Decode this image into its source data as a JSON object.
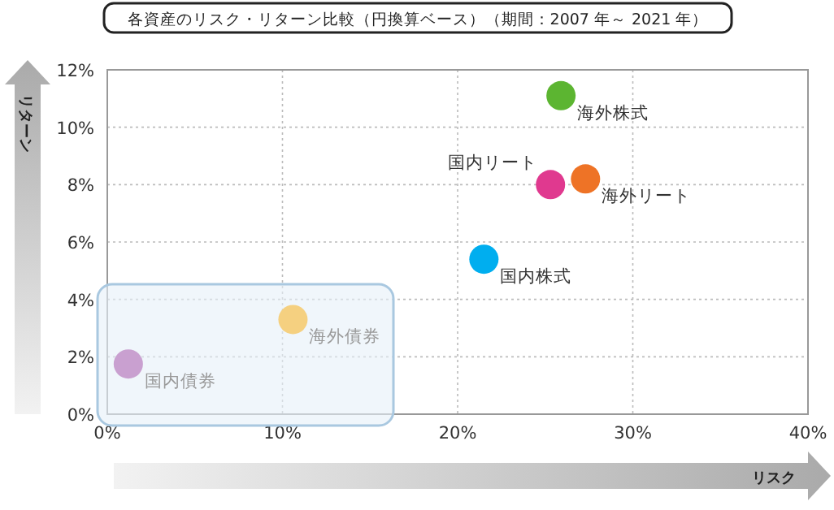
{
  "chart_data": {
    "type": "scatter",
    "title": "各資産のリスク・リターン比較（円換算ベース）（期間：2007 年～ 2021 年）",
    "xlabel": "リスク",
    "ylabel": "リターン",
    "xlim": [
      0,
      40
    ],
    "ylim": [
      0,
      12
    ],
    "xticks": [
      {
        "value": 0,
        "label": "0%"
      },
      {
        "value": 10,
        "label": "10%"
      },
      {
        "value": 20,
        "label": "20%"
      },
      {
        "value": 30,
        "label": "30%"
      },
      {
        "value": 40,
        "label": "40%"
      }
    ],
    "yticks": [
      {
        "value": 0,
        "label": "0%"
      },
      {
        "value": 2,
        "label": "2%"
      },
      {
        "value": 4,
        "label": "4%"
      },
      {
        "value": 6,
        "label": "6%"
      },
      {
        "value": 8,
        "label": "8%"
      },
      {
        "value": 10,
        "label": "10%"
      },
      {
        "value": 12,
        "label": "12%"
      }
    ],
    "grid": true,
    "marker": "circle",
    "series": [
      {
        "name": "国内債券",
        "color": "#c9a0d0",
        "x": [
          1.2
        ],
        "values": [
          1.75
        ]
      },
      {
        "name": "海外債券",
        "color": "#f5d080",
        "x": [
          10.6
        ],
        "values": [
          3.3
        ]
      },
      {
        "name": "国内株式",
        "color": "#00aeef",
        "x": [
          21.5
        ],
        "values": [
          5.4
        ]
      },
      {
        "name": "国内リート",
        "color": "#e0398f",
        "x": [
          25.3
        ],
        "values": [
          8.0
        ]
      },
      {
        "name": "海外リート",
        "color": "#ee7326",
        "x": [
          27.3
        ],
        "values": [
          8.2
        ]
      },
      {
        "name": "海外株式",
        "color": "#5cb531",
        "x": [
          25.9
        ],
        "values": [
          11.1
        ]
      }
    ]
  }
}
